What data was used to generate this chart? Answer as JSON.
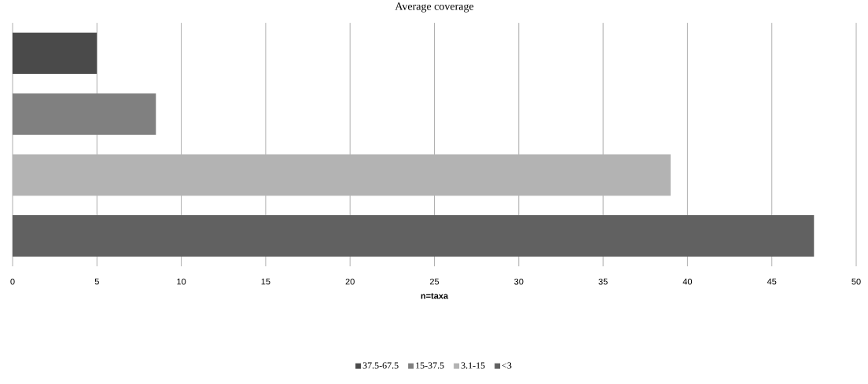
{
  "chart_data": {
    "type": "bar",
    "orientation": "horizontal",
    "title": "Average coverage",
    "xlabel": "n=taxa",
    "categories": [
      null
    ],
    "series": [
      {
        "name": "37.5-67.5",
        "color": "#4a4a4a",
        "values": [
          5
        ]
      },
      {
        "name": "15-37.5",
        "color": "#808080",
        "values": [
          8.5
        ]
      },
      {
        "name": "3.1-15",
        "color": "#b3b3b3",
        "values": [
          39
        ]
      },
      {
        "name": "<3",
        "color": "#616161",
        "values": [
          47.5
        ]
      }
    ],
    "xlim": [
      0,
      50
    ],
    "xticks": [
      0,
      5,
      10,
      15,
      20,
      25,
      30,
      35,
      40,
      45,
      50
    ],
    "grid": "x",
    "legend": "bottom"
  }
}
